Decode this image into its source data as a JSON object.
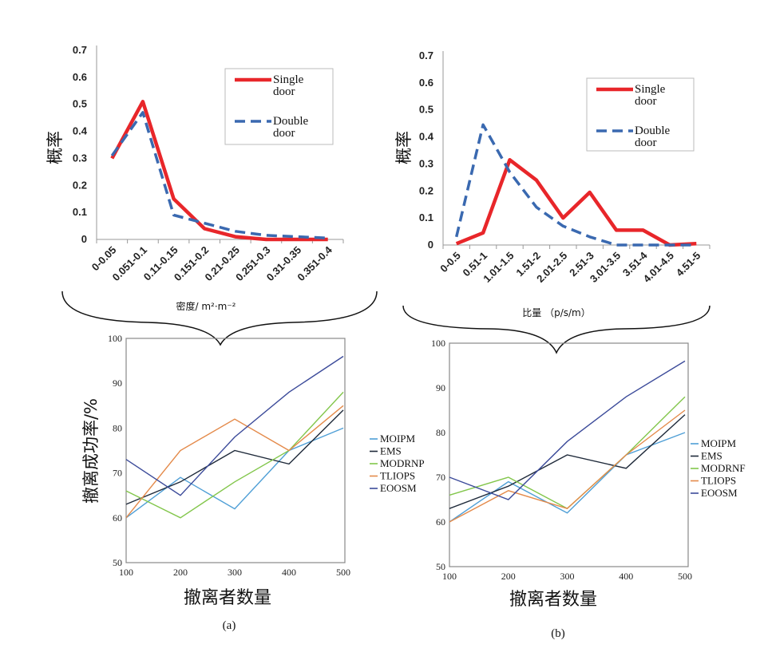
{
  "chart_data": [
    {
      "id": "top-left",
      "type": "line",
      "ylabel": "概率",
      "xlabel": "密度/ m²·m⁻²",
      "ylim": [
        0,
        0.7
      ],
      "yticks": [
        "0",
        "0.1",
        "0.2",
        "0.3",
        "0.4",
        "0.5",
        "0.6",
        "0.7"
      ],
      "categories": [
        "0-0.05",
        "0.051-0.1",
        "0.11-0.15",
        "0.151-0.2",
        "0.21-0.25",
        "0.251-0.3",
        "0.31-0.35",
        "0.351-0.4"
      ],
      "series": [
        {
          "name": "Single door",
          "legend_lines": [
            "Single",
            "door"
          ],
          "color": "#e8262a",
          "dash": "solid",
          "values": [
            0.3,
            0.51,
            0.15,
            0.04,
            0.01,
            0.0,
            0.0,
            0.0
          ]
        },
        {
          "name": "Double door",
          "legend_lines": [
            "Double",
            "door"
          ],
          "color": "#3a69b0",
          "dash": "dashed",
          "values": [
            0.31,
            0.47,
            0.09,
            0.06,
            0.03,
            0.015,
            0.01,
            0.005
          ]
        }
      ]
    },
    {
      "id": "top-right",
      "type": "line",
      "ylabel": "概率",
      "xlabel": "比量  （p/s/m）",
      "ylim": [
        0,
        0.7
      ],
      "yticks": [
        "0",
        "0.1",
        "0.2",
        "0.3",
        "0.4",
        "0.5",
        "0.6",
        "0.7"
      ],
      "categories": [
        "0-0.5",
        "0.51-1",
        "1.01-1.5",
        "1.51-2",
        "2.01-2.5",
        "2.51-3",
        "3.01-3.5",
        "3.51-4",
        "4.01-4.5",
        "4.51-5"
      ],
      "series": [
        {
          "name": "Single door",
          "legend_lines": [
            "Single",
            "door"
          ],
          "color": "#e8262a",
          "dash": "solid",
          "values": [
            0.005,
            0.045,
            0.315,
            0.24,
            0.1,
            0.195,
            0.055,
            0.055,
            0.0,
            0.005
          ]
        },
        {
          "name": "Double door",
          "legend_lines": [
            "Double",
            "door"
          ],
          "color": "#3a69b0",
          "dash": "dashed",
          "values": [
            0.03,
            0.445,
            0.27,
            0.14,
            0.07,
            0.03,
            0.0,
            0.0,
            0.0,
            0.0
          ]
        }
      ]
    },
    {
      "id": "bottom-left",
      "type": "line",
      "panel": "(a)",
      "ylabel": "撤离成功率/%",
      "xlabel": "撤离者数量",
      "ylim": [
        50,
        100
      ],
      "yticks": [
        "50",
        "60",
        "70",
        "80",
        "90",
        "100"
      ],
      "categories": [
        "100",
        "200",
        "300",
        "400",
        "500"
      ],
      "series": [
        {
          "name": "MOIPM",
          "color": "#4f9fd6",
          "values": [
            60,
            69,
            62,
            75,
            80
          ]
        },
        {
          "name": "EMS",
          "color": "#1f2a3a",
          "values": [
            63,
            68,
            75,
            72,
            84
          ]
        },
        {
          "name": "MODRNP",
          "color": "#82c64b",
          "values": [
            66,
            60,
            68,
            75,
            88
          ]
        },
        {
          "name": "TLIOPS",
          "color": "#e48a4a",
          "values": [
            60,
            75,
            82,
            75,
            85
          ]
        },
        {
          "name": "EOOSM",
          "color": "#3c4b9a",
          "values": [
            73,
            65,
            78,
            88,
            96
          ]
        }
      ]
    },
    {
      "id": "bottom-right",
      "type": "line",
      "panel": "(b)",
      "ylabel": "",
      "xlabel": "撤离者数量",
      "ylim": [
        50,
        100
      ],
      "yticks": [
        "50",
        "60",
        "70",
        "80",
        "90",
        "100"
      ],
      "categories": [
        "100",
        "200",
        "300",
        "400",
        "500"
      ],
      "series": [
        {
          "name": "MOIPM",
          "color": "#4f9fd6",
          "values": [
            60,
            69,
            62,
            75,
            80
          ]
        },
        {
          "name": "EMS",
          "color": "#1f2a3a",
          "values": [
            63,
            68,
            75,
            72,
            84
          ]
        },
        {
          "name": "MODRNF",
          "color": "#82c64b",
          "values": [
            66,
            70,
            63,
            75,
            88
          ]
        },
        {
          "name": "TLIOPS",
          "color": "#e48a4a",
          "values": [
            60,
            67,
            63,
            75,
            85
          ]
        },
        {
          "name": "EOOSM",
          "color": "#3c4b9a",
          "values": [
            70,
            65,
            78,
            88,
            96
          ]
        }
      ]
    }
  ]
}
